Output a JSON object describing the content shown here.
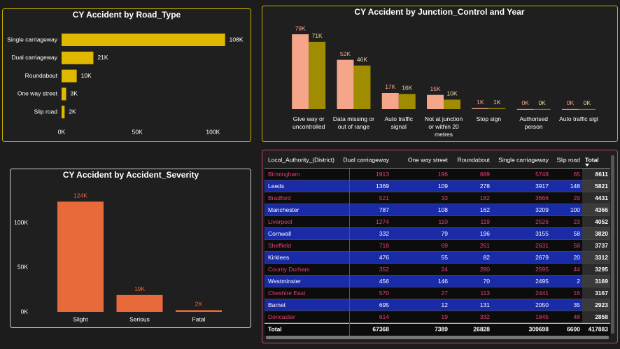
{
  "chart_data": [
    {
      "type": "hbar",
      "title": "CY Accident by Road_Type",
      "categories": [
        "Single carriageway",
        "Dual carriageway",
        "Roundabout",
        "One way street",
        "Slip road"
      ],
      "values": [
        108000,
        21000,
        10000,
        3000,
        2000
      ],
      "value_labels": [
        "108K",
        "21K",
        "10K",
        "3K",
        "2K"
      ],
      "color": "#e0b800",
      "xlim": [
        0,
        110000
      ],
      "xticks": [
        {
          "value": 0,
          "label": "0K"
        },
        {
          "value": 50000,
          "label": "50K"
        },
        {
          "value": 100000,
          "label": "100K"
        }
      ]
    },
    {
      "type": "grouped_bar",
      "title": "CY Accident by Junction_Control and Year",
      "categories": [
        "Give way or uncontrolled",
        "Data missing or out of range",
        "Auto traffic signal",
        "Not at junction or within 20 metres",
        "Stop sign",
        "Authorised person",
        "Auto traffic sigl"
      ],
      "series": [
        {
          "color": "#f4a58a",
          "values": [
            79000,
            52000,
            17000,
            15000,
            1000,
            100,
            100
          ],
          "value_labels": [
            "79K",
            "52K",
            "17K",
            "15K",
            "1K",
            "0K",
            "0K"
          ]
        },
        {
          "color": "#a08c00",
          "values": [
            71000,
            46000,
            16000,
            10000,
            1000,
            100,
            100
          ],
          "value_labels": [
            "71K",
            "46K",
            "16K",
            "10K",
            "1K",
            "0K",
            "0K"
          ]
        }
      ]
    },
    {
      "type": "bar",
      "title": "CY Accident by Accident_Severity",
      "categories": [
        "Slight",
        "Serious",
        "Fatal"
      ],
      "values": [
        124000,
        19000,
        2000
      ],
      "value_labels": [
        "124K",
        "19K",
        "2K"
      ],
      "color": "#e8693a",
      "ylim": [
        0,
        125000
      ],
      "yticks": [
        {
          "value": 0,
          "label": "0K"
        },
        {
          "value": 50000,
          "label": "50K"
        },
        {
          "value": 100000,
          "label": "100K"
        }
      ]
    }
  ],
  "table": {
    "columns": [
      "Local_Authority_(District)",
      "Dual carriageway",
      "One way street",
      "Roundabout",
      "Single carriageway",
      "Slip road",
      "Total"
    ],
    "rows": [
      [
        "Birmingham",
        1913,
        196,
        689,
        5748,
        65,
        8611
      ],
      [
        "Leeds",
        1369,
        109,
        278,
        3917,
        148,
        5821
      ],
      [
        "Bradford",
        521,
        33,
        182,
        3666,
        29,
        4431
      ],
      [
        "Manchester",
        787,
        108,
        162,
        3209,
        100,
        4366
      ],
      [
        "Liverpool",
        1274,
        110,
        119,
        2526,
        23,
        4052
      ],
      [
        "Cornwall",
        332,
        79,
        196,
        3155,
        58,
        3820
      ],
      [
        "Sheffield",
        718,
        69,
        261,
        2631,
        58,
        3737
      ],
      [
        "Kirklees",
        476,
        55,
        82,
        2679,
        20,
        3312
      ],
      [
        "County Durham",
        352,
        24,
        280,
        2595,
        44,
        3295
      ],
      [
        "Westminster",
        456,
        146,
        70,
        2495,
        2,
        3169
      ],
      [
        "Cheshire East",
        570,
        27,
        113,
        2441,
        16,
        3167
      ],
      [
        "Barnet",
        695,
        12,
        131,
        2050,
        35,
        2923
      ],
      [
        "Doncaster",
        614,
        19,
        332,
        1845,
        48,
        2858
      ]
    ],
    "total": [
      "Total",
      67368,
      7389,
      26828,
      309698,
      6600,
      417883
    ]
  }
}
